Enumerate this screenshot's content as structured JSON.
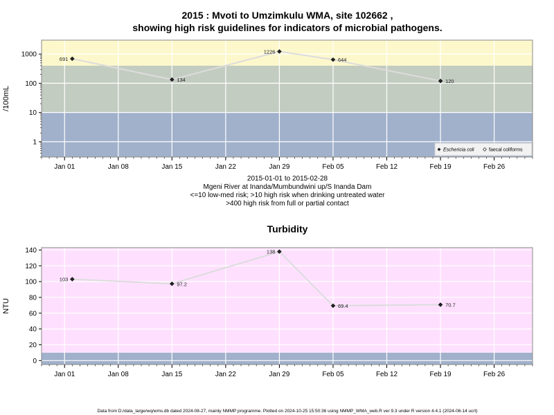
{
  "chart_data": [
    {
      "type": "line",
      "title": "2015 : Mvoti to Umzimkulu WMA, site 102662 ,",
      "title_line2": "showing high risk guidelines for indicators of microbial pathogens.",
      "ylabel": "/100mL",
      "y_scale": "log",
      "y_ticks": [
        "1",
        "10",
        "100",
        "1000"
      ],
      "x_ticks": [
        "Jan 01",
        "Jan 08",
        "Jan 15",
        "Jan 22",
        "Jan 29",
        "Feb 05",
        "Feb 12",
        "Feb 19",
        "Feb 26"
      ],
      "xlim": [
        "2014-12-29",
        "2015-03-03"
      ],
      "bands": [
        {
          "from": 0,
          "to": 10,
          "color": "#a1b1cb"
        },
        {
          "from": 10,
          "to": 400,
          "color": "#c3ccc0"
        },
        {
          "from": 400,
          "to": 3000,
          "color": "#fdf8cc"
        }
      ],
      "series": [
        {
          "name": "Eschericia coli",
          "x": [
            "2015-01-02",
            "2015-01-15",
            "2015-01-29",
            "2015-02-05",
            "2015-02-19"
          ],
          "values": [
            691,
            134,
            1226,
            644,
            120
          ],
          "labels": [
            "691",
            "134",
            "1226",
            "644",
            "120"
          ]
        }
      ],
      "legend": {
        "position": "bottom-right",
        "entries": [
          "Eschericia coli",
          "faecal coliforms"
        ]
      },
      "caption": [
        "2015-01-01 to 2015-02-28",
        "Mgeni River at Inanda/Mumbundwini up/S Inanda Dam",
        "<=10 low-med risk; >10 high risk when drinking untreated water",
        ">400 high risk from full or partial contact"
      ]
    },
    {
      "type": "line",
      "title": "Turbidity",
      "ylabel": "NTU",
      "ylim": [
        -5,
        143
      ],
      "y_ticks": [
        "0",
        "20",
        "40",
        "60",
        "80",
        "100",
        "120",
        "140"
      ],
      "x_ticks": [
        "Jan 01",
        "Jan 08",
        "Jan 15",
        "Jan 22",
        "Jan 29",
        "Feb 05",
        "Feb 12",
        "Feb 19",
        "Feb 26"
      ],
      "xlim": [
        "2014-12-29",
        "2015-03-03"
      ],
      "bands": [
        {
          "from": -5,
          "to": 10,
          "color": "#a1b1cb"
        },
        {
          "from": 10,
          "to": 143,
          "color": "#fee0fe"
        }
      ],
      "series": [
        {
          "x": [
            "2015-01-02",
            "2015-01-15",
            "2015-01-29",
            "2015-02-05",
            "2015-02-19"
          ],
          "values": [
            103,
            97.2,
            138,
            69.4,
            70.7
          ],
          "labels": [
            "103",
            "97.2",
            "138",
            "69.4",
            "70.7"
          ]
        }
      ]
    }
  ],
  "footer": "Data from D:/data_large/wq/wms.db dated 2024-08-27, mainly NMMP programme. Plotted on 2024-10-25 15:50:36 using NMMP_WMA_web.R ver 9.3 under R version 4.4.1 (2024-06-14 ucrt)"
}
